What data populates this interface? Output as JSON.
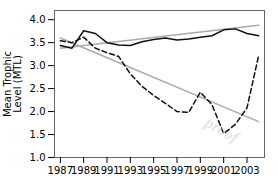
{
  "chart_data": {
    "type": "line",
    "ylabel": "Mean Trophic\nLevel (MTL)",
    "x": [
      1987,
      1988,
      1989,
      1990,
      1991,
      1992,
      1993,
      1994,
      1995,
      1996,
      1997,
      1998,
      1999,
      2000,
      2001,
      2002,
      2003,
      2004
    ],
    "series": [
      {
        "x": [
          1987,
          2004
        ],
        "values": [
          3.38,
          3.88
        ],
        "color": "#aaaaaa",
        "line_style": "solid"
      },
      {
        "x": [
          1987,
          2004
        ],
        "values": [
          3.6,
          1.78
        ],
        "color": "#aaaaaa",
        "line_style": "solid"
      },
      {
        "values": [
          3.54,
          3.5,
          3.62,
          3.38,
          3.28,
          3.2,
          2.82,
          2.55,
          2.35,
          2.18,
          2.0,
          1.98,
          2.42,
          2.15,
          1.52,
          1.72,
          2.08,
          3.22
        ],
        "color": "#111111",
        "line_style": "dashed"
      },
      {
        "values": [
          3.44,
          3.38,
          3.76,
          3.7,
          3.5,
          3.45,
          3.44,
          3.52,
          3.57,
          3.6,
          3.56,
          3.58,
          3.62,
          3.65,
          3.78,
          3.8,
          3.7,
          3.65
        ],
        "color": "#111111",
        "line_style": "solid"
      }
    ],
    "xlim": [
      1986.5,
      2004.5
    ],
    "ylim": [
      1.0,
      4.2
    ],
    "xticks": [
      1987,
      1989,
      1991,
      1993,
      1995,
      1997,
      1999,
      2001,
      2003
    ],
    "yticks": [
      {
        "value": 1.0,
        "label": "1.0"
      },
      {
        "value": 1.5,
        "label": "1.5"
      },
      {
        "value": 2.0,
        "label": "2.0"
      },
      {
        "value": 2.5,
        "label": "2.5"
      },
      {
        "value": 3.0,
        "label": "3.0"
      },
      {
        "value": 3.5,
        "label": "3.5"
      },
      {
        "value": 4.0,
        "label": "4.0"
      }
    ],
    "grid": false,
    "annotations": [
      {
        "text": "proof",
        "color": "#cccccc"
      }
    ]
  }
}
